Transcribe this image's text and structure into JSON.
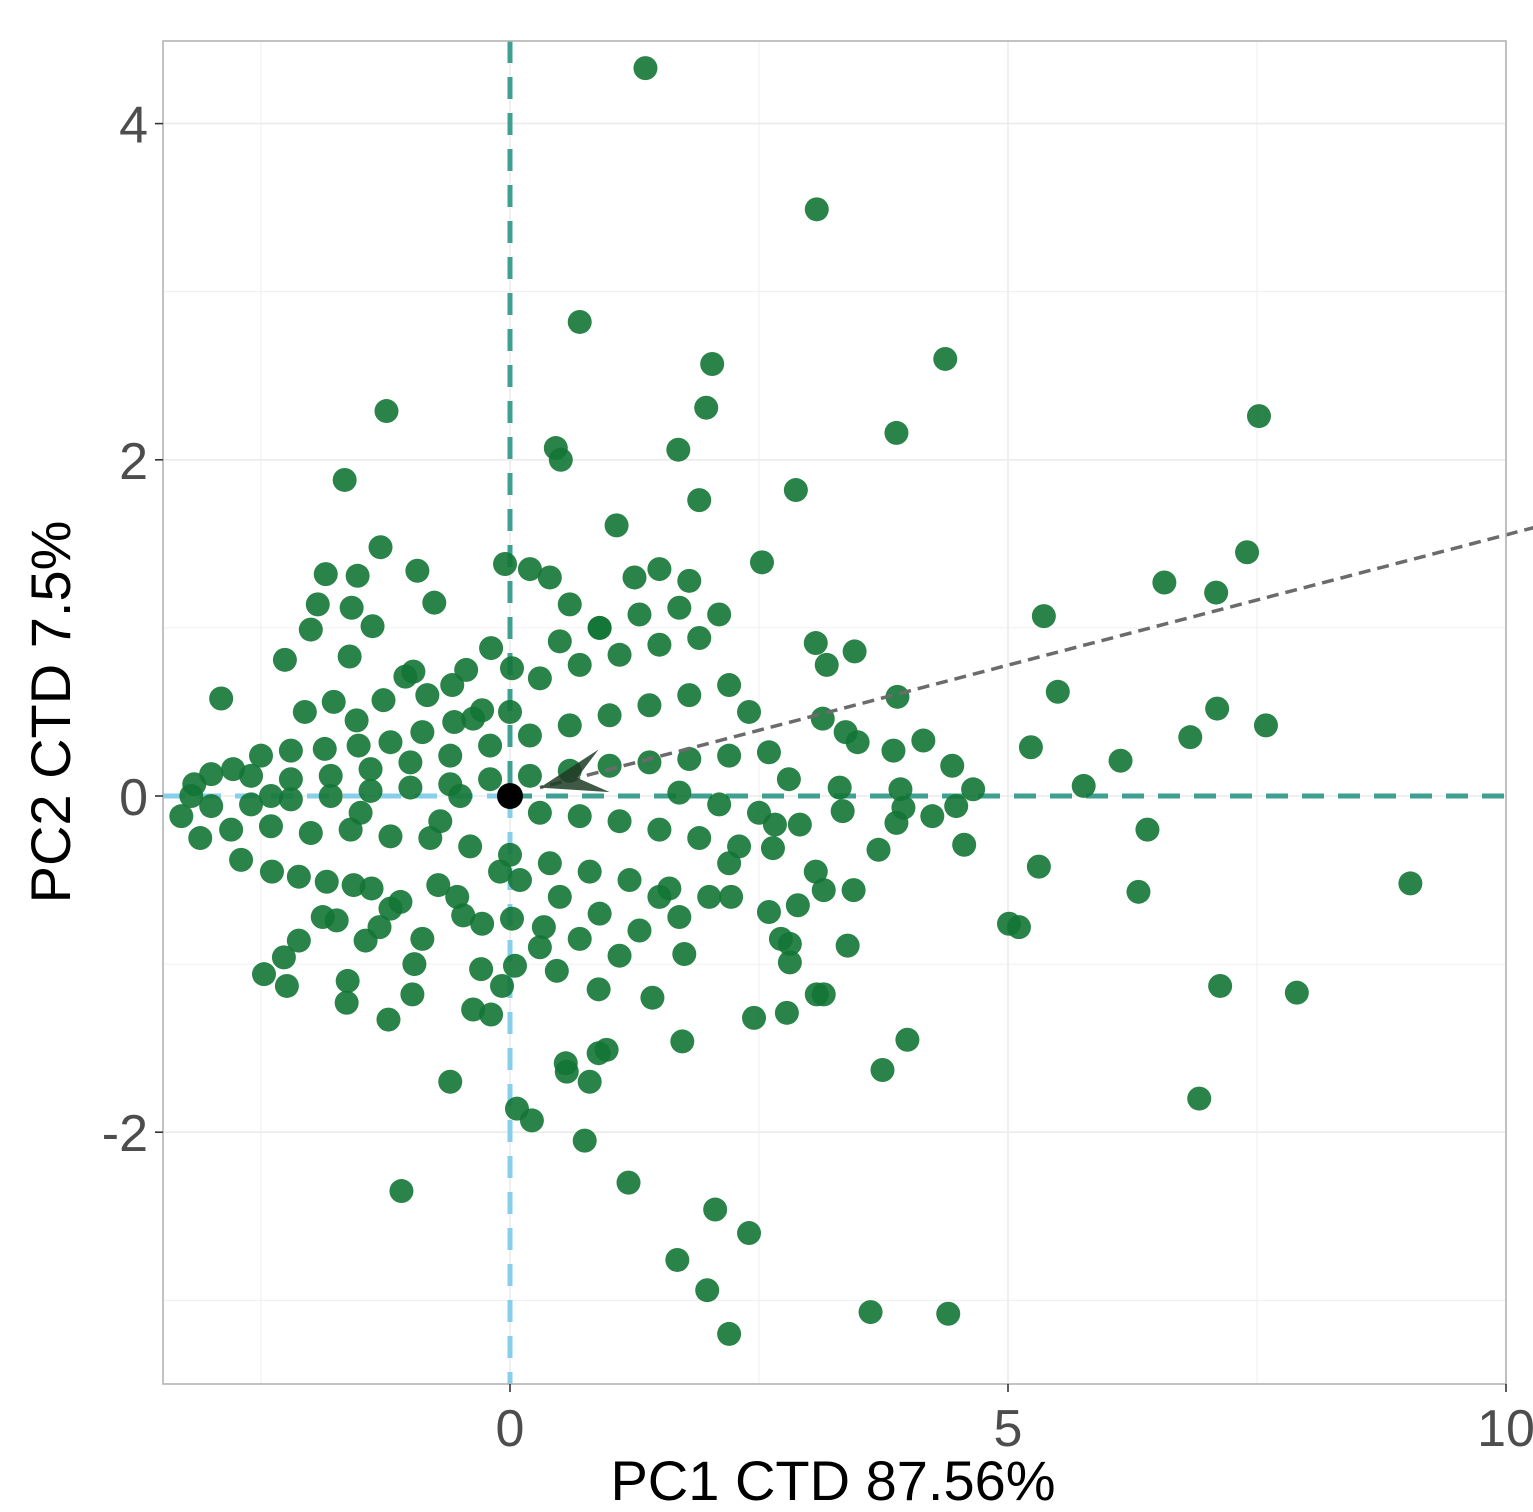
{
  "chart_data": {
    "type": "scatter",
    "title": "",
    "xlabel": "PC1 CTD 87.56%",
    "ylabel": "PC2 CTD 7.5%",
    "xlim": [
      -3.5,
      10
    ],
    "ylim": [
      -3.5,
      4.5
    ],
    "x_ticks": [
      0,
      5,
      10
    ],
    "x_tick_labels": [
      "0",
      "5",
      "10"
    ],
    "y_ticks": [
      -2,
      0,
      2,
      4
    ],
    "y_tick_labels": [
      "-2",
      "0",
      "2",
      "4"
    ],
    "grid": true,
    "colors": {
      "points": "#137535",
      "origin": "#000000",
      "x_zero_line_left": "#87ceeb",
      "x_zero_line_right": "#3fa091",
      "y_zero_line_top": "#3fa091",
      "y_zero_line_bottom": "#87ceeb",
      "loading_arrow": "#6b6b6b",
      "grid": "#ebebeb",
      "panel_border": "#b3b3b3"
    },
    "origin_point": {
      "x": 0,
      "y": 0
    },
    "loading_arrow": {
      "x_from": 10.3,
      "y_from": 1.6,
      "x_to": 0.3,
      "y_to": 0.05
    },
    "points": [
      {
        "x": 1.36,
        "y": 4.33
      },
      {
        "x": 3.08,
        "y": 3.49
      },
      {
        "x": 0.7,
        "y": 2.82
      },
      {
        "x": 2.03,
        "y": 2.57
      },
      {
        "x": 4.37,
        "y": 2.6
      },
      {
        "x": 1.97,
        "y": 2.31
      },
      {
        "x": 3.88,
        "y": 2.16
      },
      {
        "x": 7.52,
        "y": 2.26
      },
      {
        "x": -1.24,
        "y": 2.29
      },
      {
        "x": 0.46,
        "y": 2.07
      },
      {
        "x": 0.51,
        "y": 2.0
      },
      {
        "x": 1.69,
        "y": 2.06
      },
      {
        "x": -1.66,
        "y": 1.88
      },
      {
        "x": 2.87,
        "y": 1.82
      },
      {
        "x": 1.9,
        "y": 1.76
      },
      {
        "x": 1.07,
        "y": 1.61
      },
      {
        "x": 7.4,
        "y": 1.45
      },
      {
        "x": 6.57,
        "y": 1.27
      },
      {
        "x": 7.09,
        "y": 1.21
      },
      {
        "x": 5.36,
        "y": 1.07
      },
      {
        "x": 2.53,
        "y": 1.39
      },
      {
        "x": -1.3,
        "y": 1.48
      },
      {
        "x": -1.85,
        "y": 1.32
      },
      {
        "x": -1.53,
        "y": 1.31
      },
      {
        "x": -0.93,
        "y": 1.34
      },
      {
        "x": -0.76,
        "y": 1.15
      },
      {
        "x": -1.93,
        "y": 1.14
      },
      {
        "x": -1.59,
        "y": 1.12
      },
      {
        "x": -1.38,
        "y": 1.01
      },
      {
        "x": -2.0,
        "y": 0.99
      },
      {
        "x": 3.07,
        "y": 0.91
      },
      {
        "x": 3.46,
        "y": 0.86
      },
      {
        "x": 3.18,
        "y": 0.78
      },
      {
        "x": -2.26,
        "y": 0.81
      },
      {
        "x": -1.61,
        "y": 0.83
      },
      {
        "x": -2.9,
        "y": 0.58
      },
      {
        "x": 3.89,
        "y": 0.59
      },
      {
        "x": 5.5,
        "y": 0.62
      },
      {
        "x": 7.1,
        "y": 0.52
      },
      {
        "x": 7.59,
        "y": 0.42
      },
      {
        "x": 6.83,
        "y": 0.35
      },
      {
        "x": 3.14,
        "y": 0.46
      },
      {
        "x": 3.37,
        "y": 0.38
      },
      {
        "x": 3.49,
        "y": 0.32
      },
      {
        "x": 4.15,
        "y": 0.33
      },
      {
        "x": 5.23,
        "y": 0.29
      },
      {
        "x": 3.85,
        "y": 0.27
      },
      {
        "x": 6.13,
        "y": 0.21
      },
      {
        "x": 4.44,
        "y": 0.18
      },
      {
        "x": 5.76,
        "y": 0.06
      },
      {
        "x": 4.65,
        "y": 0.04
      },
      {
        "x": 3.92,
        "y": 0.04
      },
      {
        "x": 3.31,
        "y": 0.05
      },
      {
        "x": 4.48,
        "y": -0.06
      },
      {
        "x": 3.95,
        "y": -0.07
      },
      {
        "x": 3.34,
        "y": -0.09
      },
      {
        "x": 4.24,
        "y": -0.12
      },
      {
        "x": 3.88,
        "y": -0.16
      },
      {
        "x": 2.91,
        "y": -0.17
      },
      {
        "x": 2.66,
        "y": -0.17
      },
      {
        "x": 6.4,
        "y": -0.2
      },
      {
        "x": 4.56,
        "y": -0.29
      },
      {
        "x": 3.7,
        "y": -0.32
      },
      {
        "x": 2.64,
        "y": -0.31
      },
      {
        "x": 5.31,
        "y": -0.42
      },
      {
        "x": 3.07,
        "y": -0.45
      },
      {
        "x": 9.04,
        "y": -0.52
      },
      {
        "x": 3.45,
        "y": -0.56
      },
      {
        "x": 6.31,
        "y": -0.57
      },
      {
        "x": 3.15,
        "y": -0.56
      },
      {
        "x": 2.22,
        "y": -0.6
      },
      {
        "x": 2.89,
        "y": -0.65
      },
      {
        "x": 2.6,
        "y": -0.69
      },
      {
        "x": 5.01,
        "y": -0.76
      },
      {
        "x": 5.11,
        "y": -0.78
      },
      {
        "x": 2.72,
        "y": -0.85
      },
      {
        "x": 3.39,
        "y": -0.89
      },
      {
        "x": 2.81,
        "y": -0.88
      },
      {
        "x": 2.81,
        "y": -0.99
      },
      {
        "x": 1.75,
        "y": -0.94
      },
      {
        "x": 7.13,
        "y": -1.13
      },
      {
        "x": 7.9,
        "y": -1.17
      },
      {
        "x": 3.08,
        "y": -1.18
      },
      {
        "x": 3.15,
        "y": -1.18
      },
      {
        "x": 2.78,
        "y": -1.29
      },
      {
        "x": 2.45,
        "y": -1.32
      },
      {
        "x": 3.99,
        "y": -1.45
      },
      {
        "x": 1.73,
        "y": -1.46
      },
      {
        "x": 3.74,
        "y": -1.63
      },
      {
        "x": 6.92,
        "y": -1.8
      },
      {
        "x": 0.97,
        "y": -1.51
      },
      {
        "x": 0.89,
        "y": -1.53
      },
      {
        "x": 0.56,
        "y": -1.59
      },
      {
        "x": 0.57,
        "y": -1.64
      },
      {
        "x": 0.8,
        "y": -1.7
      },
      {
        "x": -0.6,
        "y": -1.7
      },
      {
        "x": 0.07,
        "y": -1.86
      },
      {
        "x": 0.22,
        "y": -1.93
      },
      {
        "x": 0.75,
        "y": -2.05
      },
      {
        "x": -1.09,
        "y": -2.35
      },
      {
        "x": 1.19,
        "y": -2.3
      },
      {
        "x": 2.06,
        "y": -2.46
      },
      {
        "x": 2.4,
        "y": -2.6
      },
      {
        "x": 1.68,
        "y": -2.76
      },
      {
        "x": 1.98,
        "y": -2.94
      },
      {
        "x": 3.62,
        "y": -3.07
      },
      {
        "x": 4.4,
        "y": -3.08
      },
      {
        "x": 2.2,
        "y": -3.2
      },
      {
        "x": -0.96,
        "y": -1.0
      },
      {
        "x": -0.98,
        "y": -1.18
      },
      {
        "x": -1.22,
        "y": -1.33
      },
      {
        "x": -1.63,
        "y": -1.1
      },
      {
        "x": -1.64,
        "y": -1.23
      },
      {
        "x": -2.24,
        "y": -1.13
      },
      {
        "x": -2.47,
        "y": -1.06
      },
      {
        "x": -2.27,
        "y": -0.96
      },
      {
        "x": -2.12,
        "y": -0.86
      },
      {
        "x": -0.88,
        "y": -0.85
      },
      {
        "x": -1.45,
        "y": -0.86
      },
      {
        "x": -0.37,
        "y": -1.27
      },
      {
        "x": -0.19,
        "y": -1.3
      },
      {
        "x": -0.08,
        "y": -1.13
      },
      {
        "x": 0.89,
        "y": -1.15
      },
      {
        "x": 1.43,
        "y": -1.2
      },
      {
        "x": -0.29,
        "y": -1.03
      },
      {
        "x": 0.05,
        "y": -1.01
      },
      {
        "x": 0.47,
        "y": -1.04
      },
      {
        "x": -3.3,
        "y": -0.12
      },
      {
        "x": -3.11,
        "y": -0.25
      },
      {
        "x": -2.7,
        "y": -0.38
      },
      {
        "x": -2.39,
        "y": -0.45
      },
      {
        "x": -2.12,
        "y": -0.48
      },
      {
        "x": -1.84,
        "y": -0.51
      },
      {
        "x": -1.57,
        "y": -0.53
      },
      {
        "x": -1.39,
        "y": -0.55
      },
      {
        "x": -1.2,
        "y": -0.67
      },
      {
        "x": -1.88,
        "y": -0.72
      },
      {
        "x": -1.74,
        "y": -0.74
      },
      {
        "x": -1.31,
        "y": -0.78
      },
      {
        "x": -1.1,
        "y": -0.63
      },
      {
        "x": -0.72,
        "y": -0.53
      },
      {
        "x": -0.53,
        "y": -0.6
      },
      {
        "x": -0.47,
        "y": -0.71
      },
      {
        "x": -0.28,
        "y": -0.76
      },
      {
        "x": 0.02,
        "y": -0.73
      },
      {
        "x": 0.34,
        "y": -0.78
      },
      {
        "x": -3.17,
        "y": 0.07
      },
      {
        "x": -3.0,
        "y": 0.13
      },
      {
        "x": -2.78,
        "y": 0.16
      },
      {
        "x": -2.5,
        "y": 0.24
      },
      {
        "x": -2.2,
        "y": 0.27
      },
      {
        "x": -1.86,
        "y": 0.28
      },
      {
        "x": -1.52,
        "y": 0.3
      },
      {
        "x": -1.2,
        "y": 0.32
      },
      {
        "x": -0.88,
        "y": 0.38
      },
      {
        "x": -0.56,
        "y": 0.44
      },
      {
        "x": -0.28,
        "y": 0.51
      },
      {
        "x": -2.06,
        "y": 0.5
      },
      {
        "x": -1.77,
        "y": 0.56
      },
      {
        "x": -1.54,
        "y": 0.45
      },
      {
        "x": -1.27,
        "y": 0.57
      },
      {
        "x": -1.05,
        "y": 0.71
      },
      {
        "x": -0.83,
        "y": 0.6
      },
      {
        "x": -0.97,
        "y": 0.74
      },
      {
        "x": -0.58,
        "y": 0.66
      },
      {
        "x": -0.44,
        "y": 0.75
      },
      {
        "x": -0.19,
        "y": 0.88
      },
      {
        "x": 0.02,
        "y": 0.76
      },
      {
        "x": -0.37,
        "y": 0.46
      },
      {
        "x": -3.0,
        "y": -0.06
      },
      {
        "x": -2.6,
        "y": -0.05
      },
      {
        "x": -2.2,
        "y": -0.02
      },
      {
        "x": -1.8,
        "y": 0.0
      },
      {
        "x": -1.4,
        "y": 0.03
      },
      {
        "x": -1.0,
        "y": 0.05
      },
      {
        "x": -0.6,
        "y": 0.07
      },
      {
        "x": -0.2,
        "y": 0.1
      },
      {
        "x": 0.2,
        "y": 0.12
      },
      {
        "x": 0.6,
        "y": 0.15
      },
      {
        "x": 1.0,
        "y": 0.18
      },
      {
        "x": 1.4,
        "y": 0.2
      },
      {
        "x": 1.8,
        "y": 0.22
      },
      {
        "x": 2.2,
        "y": 0.24
      },
      {
        "x": 2.6,
        "y": 0.26
      },
      {
        "x": -2.8,
        "y": -0.2
      },
      {
        "x": -2.4,
        "y": -0.18
      },
      {
        "x": -2.0,
        "y": -0.22
      },
      {
        "x": -1.6,
        "y": -0.2
      },
      {
        "x": -1.2,
        "y": -0.24
      },
      {
        "x": -0.8,
        "y": -0.25
      },
      {
        "x": -0.4,
        "y": -0.3
      },
      {
        "x": 0.0,
        "y": -0.35
      },
      {
        "x": 0.4,
        "y": -0.4
      },
      {
        "x": 0.8,
        "y": -0.45
      },
      {
        "x": 1.2,
        "y": -0.5
      },
      {
        "x": 1.6,
        "y": -0.55
      },
      {
        "x": 2.0,
        "y": -0.6
      },
      {
        "x": -2.6,
        "y": 0.12
      },
      {
        "x": -2.2,
        "y": 0.1
      },
      {
        "x": -1.8,
        "y": 0.12
      },
      {
        "x": -1.4,
        "y": 0.16
      },
      {
        "x": -1.0,
        "y": 0.2
      },
      {
        "x": -0.6,
        "y": 0.24
      },
      {
        "x": -0.2,
        "y": 0.3
      },
      {
        "x": 0.2,
        "y": 0.36
      },
      {
        "x": 0.6,
        "y": 0.42
      },
      {
        "x": 1.0,
        "y": 0.48
      },
      {
        "x": 1.4,
        "y": 0.54
      },
      {
        "x": 1.8,
        "y": 0.6
      },
      {
        "x": 2.2,
        "y": 0.66
      },
      {
        "x": 0.3,
        "y": 0.7
      },
      {
        "x": 0.7,
        "y": 0.78
      },
      {
        "x": 1.1,
        "y": 0.84
      },
      {
        "x": 1.5,
        "y": 0.9
      },
      {
        "x": 1.9,
        "y": 0.94
      },
      {
        "x": 0.5,
        "y": 0.92
      },
      {
        "x": 0.9,
        "y": 1.0
      },
      {
        "x": 1.3,
        "y": 1.08
      },
      {
        "x": 1.7,
        "y": 1.12
      },
      {
        "x": 2.1,
        "y": 1.08
      },
      {
        "x": 0.6,
        "y": 1.14
      },
      {
        "x": 1.25,
        "y": 1.3
      },
      {
        "x": 1.5,
        "y": 1.35
      },
      {
        "x": 1.8,
        "y": 1.28
      },
      {
        "x": -0.05,
        "y": 1.38
      },
      {
        "x": 0.2,
        "y": 1.35
      },
      {
        "x": 0.4,
        "y": 1.3
      },
      {
        "x": 0.9,
        "y": 1.0
      },
      {
        "x": 0.3,
        "y": -0.1
      },
      {
        "x": 0.7,
        "y": -0.12
      },
      {
        "x": 1.1,
        "y": -0.15
      },
      {
        "x": 1.5,
        "y": -0.2
      },
      {
        "x": 1.9,
        "y": -0.25
      },
      {
        "x": 2.3,
        "y": -0.3
      },
      {
        "x": 2.1,
        "y": -0.05
      },
      {
        "x": 1.7,
        "y": 0.02
      },
      {
        "x": 0.5,
        "y": -0.6
      },
      {
        "x": 0.9,
        "y": -0.7
      },
      {
        "x": 1.3,
        "y": -0.8
      },
      {
        "x": 1.7,
        "y": -0.72
      },
      {
        "x": 0.7,
        "y": -0.85
      },
      {
        "x": 1.1,
        "y": -0.95
      },
      {
        "x": 0.3,
        "y": -0.9
      },
      {
        "x": 1.5,
        "y": -0.6
      },
      {
        "x": 0.1,
        "y": -0.5
      },
      {
        "x": -0.1,
        "y": -0.45
      },
      {
        "x": 2.4,
        "y": 0.5
      },
      {
        "x": 2.8,
        "y": 0.1
      },
      {
        "x": 2.5,
        "y": -0.1
      },
      {
        "x": 2.2,
        "y": -0.4
      },
      {
        "x": 0.0,
        "y": 0.5
      },
      {
        "x": -0.5,
        "y": 0.0
      },
      {
        "x": -0.7,
        "y": -0.15
      },
      {
        "x": -1.5,
        "y": -0.1
      },
      {
        "x": -2.4,
        "y": 0.0
      },
      {
        "x": -3.2,
        "y": 0.0
      }
    ]
  }
}
